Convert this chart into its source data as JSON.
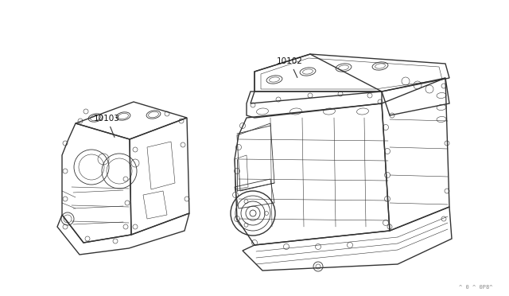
{
  "background_color": "#ffffff",
  "line_color": "#333333",
  "label_color": "#111111",
  "label_10103": "10103",
  "label_10102": "10102",
  "watermark": "^ 0 ^ 0P8^",
  "fig_width": 6.4,
  "fig_height": 3.72,
  "dpi": 100
}
